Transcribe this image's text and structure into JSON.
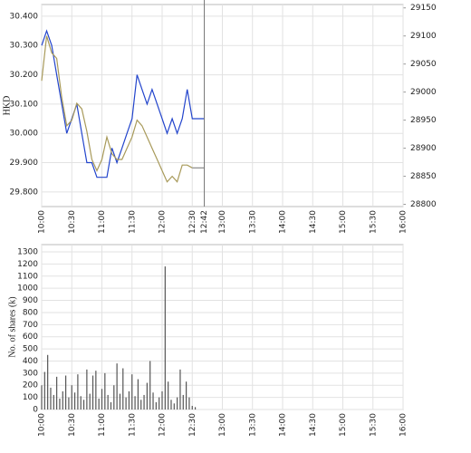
{
  "chart_data": [
    {
      "type": "line",
      "ylabel": "HKD",
      "x": [
        "10:00",
        "10:05",
        "10:10",
        "10:15",
        "10:20",
        "10:25",
        "10:30",
        "10:35",
        "10:40",
        "10:45",
        "10:50",
        "10:55",
        "11:00",
        "11:05",
        "11:10",
        "11:15",
        "11:20",
        "11:25",
        "11:30",
        "11:35",
        "11:40",
        "11:45",
        "11:50",
        "11:55",
        "12:00",
        "12:05",
        "12:10",
        "12:15",
        "12:20",
        "12:25",
        "12:30",
        "12:42"
      ],
      "series": [
        {
          "color": "#2244cc",
          "values": [
            30.3,
            30.35,
            30.3,
            30.2,
            30.1,
            30.0,
            30.05,
            30.1,
            30.0,
            29.9,
            29.9,
            29.85,
            29.85,
            29.85,
            29.95,
            29.9,
            29.95,
            30.0,
            30.05,
            30.2,
            30.15,
            30.1,
            30.15,
            30.1,
            30.05,
            30.0,
            30.05,
            30.0,
            30.05,
            30.15,
            30.05,
            30.05
          ]
        },
        {
          "color": "#a89a5a",
          "axis": "y2",
          "values": [
            29020,
            29100,
            29070,
            29060,
            28990,
            28940,
            28950,
            28980,
            28970,
            28930,
            28880,
            28860,
            28880,
            28920,
            28890,
            28880,
            28880,
            28900,
            28920,
            28950,
            28940,
            28920,
            28900,
            28880,
            28860,
            28840,
            28850,
            28840,
            28870,
            28870,
            28865,
            null
          ]
        },
        {
          "color": "#888888",
          "axis": "y2",
          "values": [
            null,
            null,
            null,
            null,
            null,
            null,
            null,
            null,
            null,
            null,
            null,
            null,
            null,
            null,
            null,
            null,
            null,
            null,
            null,
            null,
            null,
            null,
            null,
            null,
            null,
            null,
            null,
            null,
            null,
            null,
            28865,
            28865
          ]
        }
      ],
      "now_line": "12:42",
      "xlim": [
        "10:00",
        "16:00"
      ],
      "xticks": [
        "10:00",
        "10:30",
        "11:00",
        "11:30",
        "12:00",
        "12:30",
        "12:42",
        "13:00",
        "13:30",
        "14:00",
        "14:30",
        "15:00",
        "15:30",
        "16:00"
      ],
      "ylim": [
        29.75,
        30.44
      ],
      "yticks": [
        {
          "value": 29.8,
          "label": "29.800"
        },
        {
          "value": 29.9,
          "label": "29.900"
        },
        {
          "value": 30.0,
          "label": "30.000"
        },
        {
          "value": 30.1,
          "label": "30.100"
        },
        {
          "value": 30.2,
          "label": "30.200"
        },
        {
          "value": 30.3,
          "label": "30.300"
        },
        {
          "value": 30.4,
          "label": "30.400"
        }
      ],
      "y2lim": [
        28796,
        29156
      ],
      "y2ticks": [
        28800,
        28850,
        28900,
        28950,
        29000,
        29050,
        29100,
        29150
      ],
      "grid": true
    },
    {
      "type": "bar",
      "ylabel": "No. of shares (k)",
      "color": "#555555",
      "x": [
        "10:00",
        "10:03",
        "10:06",
        "10:09",
        "10:12",
        "10:15",
        "10:18",
        "10:21",
        "10:24",
        "10:27",
        "10:30",
        "10:33",
        "10:36",
        "10:39",
        "10:42",
        "10:45",
        "10:48",
        "10:51",
        "10:54",
        "10:57",
        "11:00",
        "11:03",
        "11:06",
        "11:09",
        "11:12",
        "11:15",
        "11:18",
        "11:21",
        "11:24",
        "11:27",
        "11:30",
        "11:33",
        "11:36",
        "11:39",
        "11:42",
        "11:45",
        "11:48",
        "11:51",
        "11:54",
        "11:57",
        "12:00",
        "12:03",
        "12:06",
        "12:09",
        "12:12",
        "12:15",
        "12:18",
        "12:21",
        "12:24",
        "12:27",
        "12:30",
        "12:33"
      ],
      "values": [
        200,
        310,
        450,
        180,
        120,
        270,
        90,
        150,
        280,
        100,
        200,
        140,
        290,
        110,
        80,
        330,
        130,
        280,
        320,
        90,
        170,
        300,
        120,
        60,
        200,
        380,
        130,
        340,
        100,
        150,
        290,
        110,
        250,
        80,
        120,
        220,
        400,
        140,
        60,
        100,
        150,
        1180,
        230,
        80,
        50,
        100,
        330,
        120,
        230,
        100,
        30,
        20
      ],
      "xlim": [
        "10:00",
        "16:00"
      ],
      "xticks": [
        "10:00",
        "10:30",
        "11:00",
        "11:30",
        "12:00",
        "12:30",
        "13:00",
        "13:30",
        "14:00",
        "14:30",
        "15:00",
        "15:30",
        "16:00"
      ],
      "ylim": [
        0,
        1360
      ],
      "yticks": [
        0,
        100,
        200,
        300,
        400,
        500,
        600,
        700,
        800,
        900,
        1000,
        1100,
        1200,
        1300
      ],
      "grid": true
    }
  ]
}
